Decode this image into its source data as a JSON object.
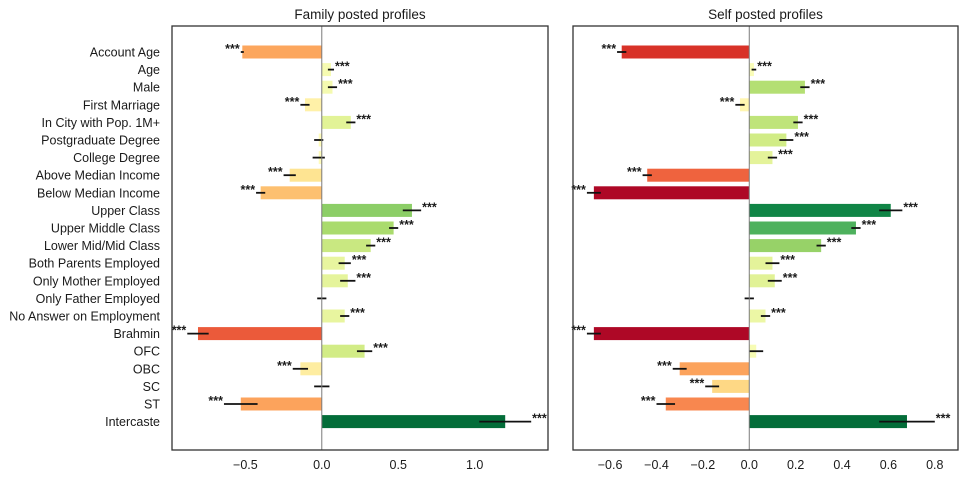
{
  "chart_data": [
    {
      "type": "bar",
      "orientation": "horizontal",
      "title": "Family posted profiles",
      "xlabel": "",
      "ylabel": "",
      "xlim": [
        -0.98,
        1.48
      ],
      "xticks": [
        -0.5,
        0.0,
        0.5,
        1.0
      ],
      "xtick_labels": [
        "−0.5",
        "0.0",
        "0.5",
        "1.0"
      ],
      "grid": false,
      "categories": [
        "Account Age",
        "Age",
        "Male",
        "First Marriage",
        "In City with Pop. 1M+",
        "Postgraduate Degree",
        "College Degree",
        "Above Median Income",
        "Below Median Income",
        "Upper Class",
        "Upper Middle Class",
        "Lower Mid/Mid Class",
        "Both Parents Employed",
        "Only Mother Employed",
        "Only Father Employed",
        "No Answer on Employment",
        "Brahmin",
        "OFC",
        "OBC",
        "SC",
        "ST",
        "Intercaste"
      ],
      "values": [
        -0.52,
        0.06,
        0.07,
        -0.11,
        0.19,
        -0.02,
        -0.02,
        -0.21,
        -0.4,
        0.59,
        0.47,
        0.32,
        0.15,
        0.17,
        0.0,
        0.15,
        -0.81,
        0.28,
        -0.14,
        0.0,
        -0.53,
        1.2
      ],
      "errors": [
        0.01,
        0.02,
        0.03,
        0.03,
        0.03,
        0.03,
        0.04,
        0.04,
        0.03,
        0.06,
        0.03,
        0.03,
        0.04,
        0.05,
        0.03,
        0.03,
        0.07,
        0.05,
        0.05,
        0.05,
        0.11,
        0.17
      ],
      "significance": [
        "***",
        "***",
        "***",
        "***",
        "***",
        "",
        "",
        "***",
        "***",
        "***",
        "***",
        "***",
        "***",
        "***",
        "",
        "***",
        "***",
        "***",
        "***",
        "",
        "***",
        "***"
      ]
    },
    {
      "type": "bar",
      "orientation": "horizontal",
      "title": "Self posted profiles",
      "xlabel": "",
      "ylabel": "",
      "xlim": [
        -0.76,
        0.9
      ],
      "xticks": [
        -0.6,
        -0.4,
        -0.2,
        0.0,
        0.2,
        0.4,
        0.6,
        0.8
      ],
      "xtick_labels": [
        "−0.6",
        "−0.4",
        "−0.2",
        "0.0",
        "0.2",
        "0.4",
        "0.6",
        "0.8"
      ],
      "grid": false,
      "categories": [
        "Account Age",
        "Age",
        "Male",
        "First Marriage",
        "In City with Pop. 1M+",
        "Postgraduate Degree",
        "College Degree",
        "Above Median Income",
        "Below Median Income",
        "Upper Class",
        "Upper Middle Class",
        "Lower Mid/Mid Class",
        "Both Parents Employed",
        "Only Mother Employed",
        "Only Father Employed",
        "No Answer on Employment",
        "Brahmin",
        "OFC",
        "OBC",
        "SC",
        "ST",
        "Intercaste"
      ],
      "values": [
        -0.55,
        0.02,
        0.24,
        -0.04,
        0.21,
        0.16,
        0.1,
        -0.44,
        -0.67,
        0.61,
        0.46,
        0.31,
        0.1,
        0.11,
        0.0,
        0.07,
        -0.67,
        0.03,
        -0.3,
        -0.16,
        -0.36,
        0.68
      ],
      "errors": [
        0.02,
        0.01,
        0.02,
        0.02,
        0.02,
        0.03,
        0.02,
        0.02,
        0.03,
        0.05,
        0.02,
        0.02,
        0.03,
        0.03,
        0.02,
        0.02,
        0.03,
        0.03,
        0.03,
        0.03,
        0.04,
        0.12
      ],
      "significance": [
        "***",
        "***",
        "***",
        "***",
        "***",
        "***",
        "***",
        "***",
        "***",
        "***",
        "***",
        "***",
        "***",
        "***",
        "",
        "***",
        "***",
        "",
        "***",
        "***",
        "***",
        "***"
      ]
    }
  ]
}
